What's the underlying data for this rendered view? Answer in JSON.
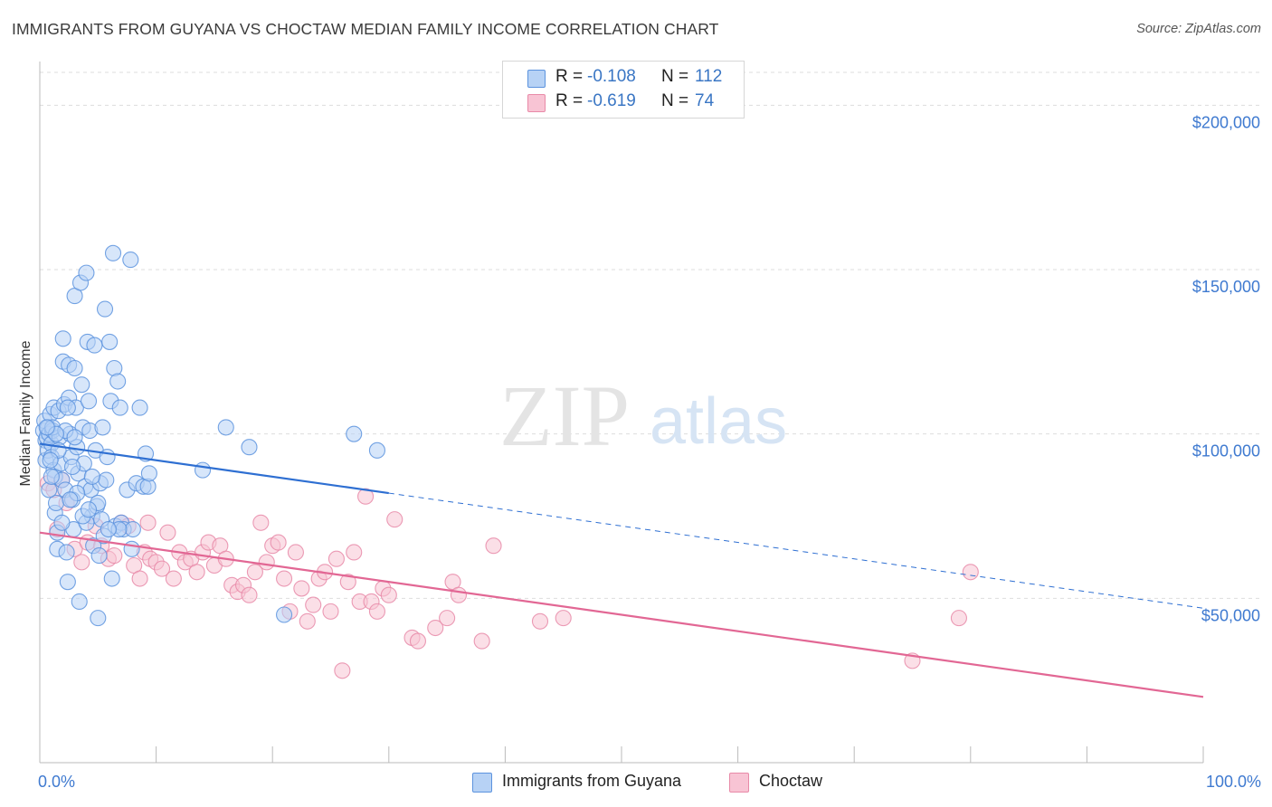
{
  "title": "IMMIGRANTS FROM GUYANA VS CHOCTAW MEDIAN FAMILY INCOME CORRELATION CHART",
  "source": "Source: ZipAtlas.com",
  "watermark": {
    "zip": "ZIP",
    "atlas": "atlas"
  },
  "legend": {
    "rows": [
      {
        "r_label": "R =",
        "r_value": "-0.108",
        "n_label": "N =",
        "n_value": "112"
      },
      {
        "r_label": "R =",
        "r_value": "-0.619",
        "n_label": "N =",
        "n_value": "74"
      }
    ]
  },
  "bottom_legend": {
    "series1": "Immigrants from Guyana",
    "series2": "Choctaw"
  },
  "colors": {
    "blue_fill": "#b7d2f5",
    "blue_stroke": "#5c93de",
    "blue_line": "#2e6fd2",
    "pink_fill": "#f8c4d4",
    "pink_stroke": "#e88aa8",
    "pink_line": "#e26794",
    "axis_label": "#3f7ad0",
    "grid": "#dddddd"
  },
  "chart_data": {
    "type": "scatter",
    "title": "IMMIGRANTS FROM GUYANA VS CHOCTAW MEDIAN FAMILY INCOME CORRELATION CHART",
    "xlabel": "",
    "ylabel": "Median Family Income",
    "xlim": [
      0,
      100
    ],
    "ylim": [
      0,
      210000
    ],
    "x_tick_labels": [
      "0.0%",
      "100.0%"
    ],
    "y_ticks": [
      50000,
      100000,
      150000,
      200000
    ],
    "y_tick_labels": [
      "$50,000",
      "$100,000",
      "$150,000",
      "$200,000"
    ],
    "series": [
      {
        "name": "Immigrants from Guyana",
        "r": -0.108,
        "n": 112,
        "trend": {
          "x0": 0,
          "y0": 97000,
          "x1": 30,
          "y1": 82000,
          "dashed_to_x": 100,
          "dashed_to_y": 47000
        },
        "points": [
          [
            0.3,
            101000
          ],
          [
            0.4,
            104000
          ],
          [
            0.5,
            98000
          ],
          [
            0.5,
            92000
          ],
          [
            0.6,
            99000
          ],
          [
            0.7,
            102000
          ],
          [
            0.7,
            95000
          ],
          [
            0.8,
            100000
          ],
          [
            0.9,
            106000
          ],
          [
            1.0,
            97000
          ],
          [
            1.0,
            93000
          ],
          [
            1.1,
            101000
          ],
          [
            1.2,
            108000
          ],
          [
            1.2,
            89000
          ],
          [
            1.3,
            87000
          ],
          [
            1.3,
            76000
          ],
          [
            1.4,
            79000
          ],
          [
            1.5,
            70000
          ],
          [
            1.5,
            65000
          ],
          [
            1.6,
            107000
          ],
          [
            1.7,
            99000
          ],
          [
            1.8,
            91000
          ],
          [
            1.9,
            86000
          ],
          [
            2.0,
            129000
          ],
          [
            2.0,
            122000
          ],
          [
            2.1,
            109000
          ],
          [
            2.2,
            83000
          ],
          [
            2.3,
            64000
          ],
          [
            2.4,
            55000
          ],
          [
            2.5,
            121000
          ],
          [
            2.5,
            111000
          ],
          [
            2.6,
            100000
          ],
          [
            2.7,
            93000
          ],
          [
            2.8,
            80000
          ],
          [
            2.9,
            71000
          ],
          [
            3.0,
            142000
          ],
          [
            3.0,
            120000
          ],
          [
            3.1,
            108000
          ],
          [
            3.2,
            96000
          ],
          [
            3.3,
            88000
          ],
          [
            3.4,
            49000
          ],
          [
            3.5,
            146000
          ],
          [
            3.6,
            115000
          ],
          [
            3.7,
            102000
          ],
          [
            3.8,
            91000
          ],
          [
            3.9,
            84000
          ],
          [
            4.0,
            149000
          ],
          [
            4.1,
            128000
          ],
          [
            4.2,
            110000
          ],
          [
            4.3,
            101000
          ],
          [
            4.4,
            83000
          ],
          [
            4.5,
            75000
          ],
          [
            4.6,
            66000
          ],
          [
            4.7,
            127000
          ],
          [
            4.8,
            95000
          ],
          [
            4.9,
            78000
          ],
          [
            5.0,
            44000
          ],
          [
            5.1,
            63000
          ],
          [
            5.2,
            85000
          ],
          [
            5.3,
            74000
          ],
          [
            5.4,
            102000
          ],
          [
            5.5,
            69000
          ],
          [
            5.6,
            138000
          ],
          [
            5.7,
            86000
          ],
          [
            5.8,
            93000
          ],
          [
            6.0,
            128000
          ],
          [
            6.1,
            110000
          ],
          [
            6.2,
            56000
          ],
          [
            6.3,
            155000
          ],
          [
            6.4,
            120000
          ],
          [
            6.5,
            72000
          ],
          [
            6.7,
            116000
          ],
          [
            6.9,
            108000
          ],
          [
            7.0,
            73000
          ],
          [
            7.2,
            71000
          ],
          [
            7.5,
            83000
          ],
          [
            7.8,
            153000
          ],
          [
            7.9,
            65000
          ],
          [
            8.0,
            71000
          ],
          [
            8.3,
            85000
          ],
          [
            8.6,
            108000
          ],
          [
            8.9,
            84000
          ],
          [
            9.1,
            94000
          ],
          [
            9.3,
            84000
          ],
          [
            9.4,
            88000
          ],
          [
            14.0,
            89000
          ],
          [
            16.0,
            102000
          ],
          [
            18.0,
            96000
          ],
          [
            21.0,
            45000
          ],
          [
            27.0,
            100000
          ],
          [
            29.0,
            95000
          ],
          [
            1.1,
            102000
          ],
          [
            1.6,
            95000
          ],
          [
            2.2,
            101000
          ],
          [
            3.2,
            82000
          ],
          [
            4.0,
            73000
          ],
          [
            0.8,
            83000
          ],
          [
            1.4,
            100000
          ],
          [
            2.8,
            90000
          ],
          [
            5.0,
            79000
          ],
          [
            3.7,
            75000
          ],
          [
            1.9,
            73000
          ],
          [
            0.6,
            102000
          ],
          [
            2.4,
            108000
          ],
          [
            4.5,
            87000
          ],
          [
            6.8,
            71000
          ],
          [
            3.0,
            99000
          ],
          [
            1.0,
            87000
          ],
          [
            2.6,
            80000
          ],
          [
            5.9,
            71000
          ],
          [
            0.9,
            92000
          ],
          [
            4.2,
            77000
          ]
        ]
      },
      {
        "name": "Choctaw",
        "r": -0.619,
        "n": 74,
        "trend": {
          "x0": 0,
          "y0": 70000,
          "x1": 100,
          "y1": 20000
        },
        "points": [
          [
            0.7,
            85000
          ],
          [
            1.2,
            83000
          ],
          [
            1.5,
            71000
          ],
          [
            1.9,
            86000
          ],
          [
            2.3,
            79000
          ],
          [
            3.0,
            65000
          ],
          [
            3.6,
            61000
          ],
          [
            4.1,
            67000
          ],
          [
            4.8,
            72000
          ],
          [
            5.3,
            66000
          ],
          [
            5.9,
            62000
          ],
          [
            6.4,
            63000
          ],
          [
            7.0,
            73000
          ],
          [
            7.6,
            72000
          ],
          [
            8.1,
            60000
          ],
          [
            8.6,
            56000
          ],
          [
            9.0,
            64000
          ],
          [
            9.5,
            62000
          ],
          [
            10.0,
            61000
          ],
          [
            10.5,
            59000
          ],
          [
            11.0,
            70000
          ],
          [
            11.5,
            56000
          ],
          [
            12.0,
            64000
          ],
          [
            12.5,
            61000
          ],
          [
            13.0,
            62000
          ],
          [
            13.5,
            58000
          ],
          [
            14.0,
            64000
          ],
          [
            14.5,
            67000
          ],
          [
            15.0,
            60000
          ],
          [
            15.5,
            66000
          ],
          [
            16.0,
            62000
          ],
          [
            16.5,
            54000
          ],
          [
            17.0,
            52000
          ],
          [
            17.5,
            54000
          ],
          [
            18.0,
            51000
          ],
          [
            18.5,
            58000
          ],
          [
            19.0,
            73000
          ],
          [
            19.5,
            61000
          ],
          [
            20.0,
            66000
          ],
          [
            20.5,
            67000
          ],
          [
            21.0,
            56000
          ],
          [
            21.5,
            46000
          ],
          [
            22.0,
            64000
          ],
          [
            22.5,
            53000
          ],
          [
            23.0,
            43000
          ],
          [
            23.5,
            48000
          ],
          [
            24.0,
            56000
          ],
          [
            24.5,
            58000
          ],
          [
            25.0,
            46000
          ],
          [
            25.5,
            62000
          ],
          [
            26.0,
            28000
          ],
          [
            26.5,
            55000
          ],
          [
            27.0,
            64000
          ],
          [
            27.5,
            49000
          ],
          [
            28.0,
            81000
          ],
          [
            28.5,
            49000
          ],
          [
            29.0,
            46000
          ],
          [
            29.5,
            53000
          ],
          [
            30.0,
            51000
          ],
          [
            30.5,
            74000
          ],
          [
            32.0,
            38000
          ],
          [
            32.5,
            37000
          ],
          [
            34.0,
            41000
          ],
          [
            35.0,
            44000
          ],
          [
            35.5,
            55000
          ],
          [
            36.0,
            51000
          ],
          [
            38.0,
            37000
          ],
          [
            39.0,
            66000
          ],
          [
            43.0,
            43000
          ],
          [
            45.0,
            44000
          ],
          [
            75.0,
            31000
          ],
          [
            79.0,
            44000
          ],
          [
            80.0,
            58000
          ],
          [
            9.3,
            73000
          ]
        ]
      }
    ]
  }
}
